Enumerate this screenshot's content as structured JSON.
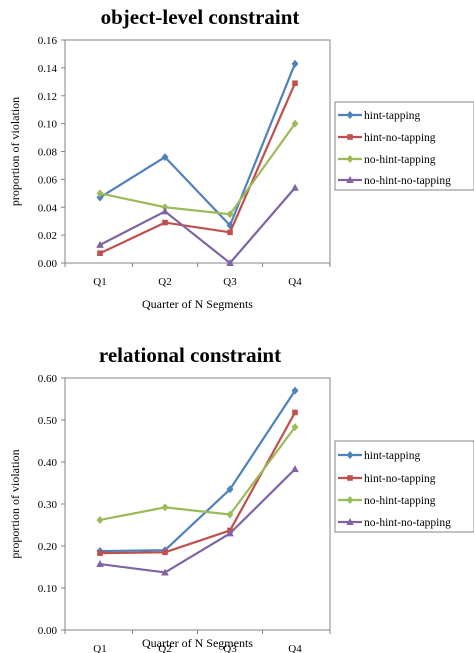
{
  "chart_data": [
    {
      "type": "line",
      "title": "object-level constraint",
      "xlabel": "Quarter of N Segments",
      "ylabel": "proportion of violation",
      "categories": [
        "Q1",
        "Q2",
        "Q3",
        "Q4"
      ],
      "ylim": [
        0,
        0.16
      ],
      "yticks": [
        "0.00",
        "0.02",
        "0.04",
        "0.06",
        "0.08",
        "0.10",
        "0.12",
        "0.14",
        "0.16"
      ],
      "grid": false,
      "legend_position": "right",
      "series": [
        {
          "name": "hint-tapping",
          "color": "#4f81bd",
          "marker": "diamond",
          "values": [
            0.047,
            0.076,
            0.027,
            0.143
          ]
        },
        {
          "name": "hint-no-tapping",
          "color": "#c0504d",
          "marker": "square",
          "values": [
            0.007,
            0.029,
            0.022,
            0.129
          ]
        },
        {
          "name": "no-hint-tapping",
          "color": "#9bbb59",
          "marker": "diamond",
          "values": [
            0.05,
            0.04,
            0.035,
            0.1
          ]
        },
        {
          "name": "no-hint-no-tapping",
          "color": "#8064a2",
          "marker": "triangle",
          "values": [
            0.013,
            0.037,
            0.0,
            0.054
          ]
        }
      ]
    },
    {
      "type": "line",
      "title": "relational constraint",
      "xlabel": "Quarter of N Segments",
      "ylabel": "proportion of violation",
      "categories": [
        "Q1",
        "Q2",
        "Q3",
        "Q4"
      ],
      "ylim": [
        0,
        0.6
      ],
      "yticks": [
        "0.00",
        "0.10",
        "0.20",
        "0.30",
        "0.40",
        "0.50",
        "0.60"
      ],
      "grid": false,
      "legend_position": "right",
      "series": [
        {
          "name": "hint-tapping",
          "color": "#4f81bd",
          "marker": "diamond",
          "values": [
            0.188,
            0.19,
            0.335,
            0.57
          ]
        },
        {
          "name": "hint-no-tapping",
          "color": "#c0504d",
          "marker": "square",
          "values": [
            0.183,
            0.185,
            0.237,
            0.518
          ]
        },
        {
          "name": "no-hint-tapping",
          "color": "#9bbb59",
          "marker": "diamond",
          "values": [
            0.262,
            0.292,
            0.275,
            0.483
          ]
        },
        {
          "name": "no-hint-no-tapping",
          "color": "#8064a2",
          "marker": "triangle",
          "values": [
            0.157,
            0.137,
            0.23,
            0.383
          ]
        }
      ]
    }
  ]
}
